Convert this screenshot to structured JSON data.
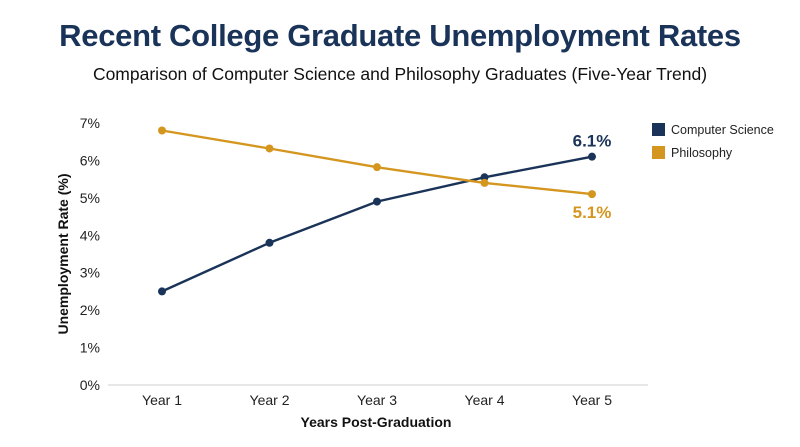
{
  "title": "Recent College Graduate Unemployment Rates",
  "subtitle": "Comparison of Computer Science and Philosophy Graduates (Five-Year Trend)",
  "chart_data": {
    "type": "line",
    "categories": [
      "Year 1",
      "Year 2",
      "Year 3",
      "Year 4",
      "Year 5"
    ],
    "series": [
      {
        "name": "Computer Science",
        "values": [
          2.5,
          3.8,
          4.9,
          5.55,
          6.1
        ],
        "color": "#1a3358",
        "end_label": "6.1%"
      },
      {
        "name": "Philosophy",
        "values": [
          6.8,
          6.32,
          5.82,
          5.4,
          5.1
        ],
        "color": "#d4961f",
        "end_label": "5.1%"
      }
    ],
    "ylim": [
      0,
      7
    ],
    "yticks": [
      "0%",
      "1%",
      "2%",
      "3%",
      "4%",
      "5%",
      "6%",
      "7%"
    ],
    "xlabel": "Years Post-Graduation",
    "ylabel": "Unemployment Rate (%)",
    "grid": false,
    "legend": "top-right"
  }
}
